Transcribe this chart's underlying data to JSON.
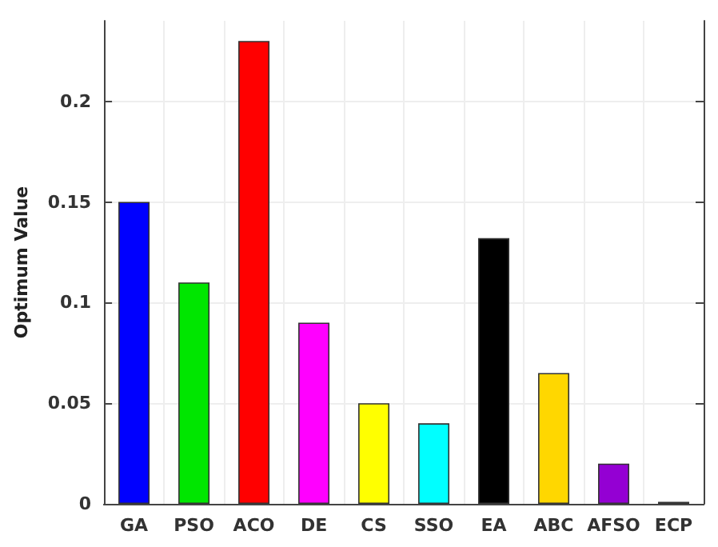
{
  "chart_data": {
    "type": "bar",
    "ylabel": "Optimum Value",
    "categories": [
      "GA",
      "PSO",
      "ACO",
      "DE",
      "CS",
      "SSO",
      "EA",
      "ABC",
      "AFSO",
      "ECP"
    ],
    "values": [
      0.15,
      0.11,
      0.23,
      0.09,
      0.05,
      0.04,
      0.132,
      0.065,
      0.02,
      0.001
    ],
    "colors": [
      "#0000ff",
      "#00e600",
      "#ff0000",
      "#ff00ff",
      "#ffff00",
      "#00ffff",
      "#000000",
      "#ffd700",
      "#9400d3",
      "#000000"
    ],
    "ylim": [
      0,
      0.24
    ],
    "yticks": [
      0,
      0.05,
      0.1,
      0.15,
      0.2
    ],
    "grid": true
  }
}
